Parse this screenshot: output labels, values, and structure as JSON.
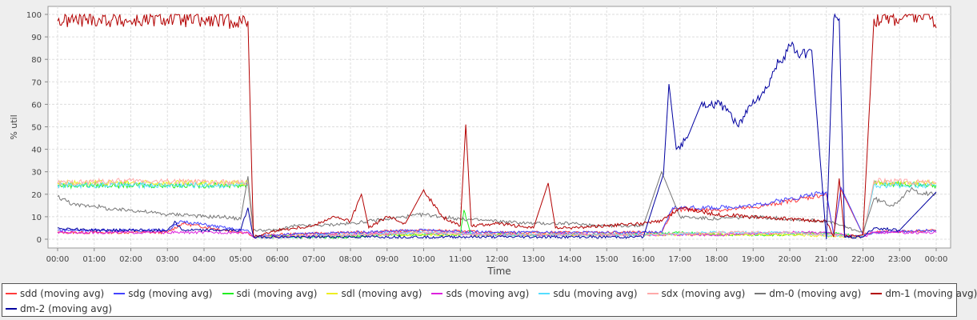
{
  "chart_data": {
    "type": "line",
    "title": "",
    "xlabel": "Time",
    "ylabel": "% util",
    "ylim": [
      0,
      100
    ],
    "yticks": [
      0,
      10,
      20,
      30,
      40,
      50,
      60,
      70,
      80,
      90,
      100
    ],
    "xlim": [
      0,
      24
    ],
    "xticks": [
      "00:00",
      "01:00",
      "02:00",
      "03:00",
      "04:00",
      "05:00",
      "06:00",
      "07:00",
      "08:00",
      "09:00",
      "10:00",
      "11:00",
      "12:00",
      "13:00",
      "14:00",
      "15:00",
      "16:00",
      "17:00",
      "18:00",
      "19:00",
      "20:00",
      "21:00",
      "22:00",
      "23:00",
      "00:00"
    ],
    "grid": true,
    "legend_position": "bottom",
    "series": [
      {
        "name": "sdd (moving avg)",
        "color": "#ff3b3b",
        "x": [
          0,
          2,
          3,
          3.4,
          5,
          5.2,
          5.35,
          6,
          8,
          10,
          12,
          14,
          16.5,
          16.8,
          18,
          19,
          20,
          21,
          21.2,
          21.4,
          22,
          22.3,
          24
        ],
        "y": [
          3,
          3,
          3,
          7,
          3,
          3,
          1,
          2,
          3,
          4,
          3,
          3,
          3,
          13,
          13,
          14,
          17,
          20,
          2,
          22,
          2,
          3,
          4
        ]
      },
      {
        "name": "sdg (moving avg)",
        "color": "#4444ff",
        "x": [
          0,
          2,
          3,
          3.4,
          5,
          5.2,
          5.35,
          6,
          8,
          10,
          12,
          14,
          16.5,
          16.8,
          18,
          19,
          20,
          21,
          21.2,
          21.4,
          22,
          22.3,
          24
        ],
        "y": [
          4,
          4,
          4,
          8,
          4,
          4,
          1,
          2,
          3,
          4,
          3,
          3,
          3,
          14,
          14,
          15,
          18,
          21,
          2,
          23,
          2,
          3,
          4
        ]
      },
      {
        "name": "sdi (moving avg)",
        "color": "#22ee22",
        "x": [
          0,
          2,
          5.2,
          5.35,
          6,
          8,
          9,
          10,
          11,
          11.1,
          11.3,
          12,
          14,
          16,
          17,
          18,
          19,
          20,
          21,
          22,
          22.3,
          24
        ],
        "y": [
          24,
          24,
          24,
          1,
          1,
          1,
          2,
          2,
          2,
          13,
          2,
          2,
          2,
          2,
          3,
          2,
          2,
          2,
          3,
          1,
          25,
          24
        ]
      },
      {
        "name": "sdl (moving avg)",
        "color": "#eeee22",
        "x": [
          0,
          2,
          5.2,
          5.35,
          6,
          8,
          10,
          12,
          14,
          16,
          18,
          20,
          22,
          22.3,
          24
        ],
        "y": [
          25,
          25,
          25,
          1,
          1,
          2,
          2,
          2,
          2,
          2,
          2,
          2,
          1,
          25,
          25
        ]
      },
      {
        "name": "sds (moving avg)",
        "color": "#dd22dd",
        "x": [
          0,
          2,
          5.2,
          5.35,
          6,
          8,
          10,
          12,
          14,
          16,
          18,
          20,
          21,
          22,
          22.3,
          24
        ],
        "y": [
          3,
          3,
          3,
          1,
          1,
          2,
          3,
          2,
          2,
          2,
          2,
          3,
          3,
          1,
          3,
          3
        ]
      },
      {
        "name": "sdu (moving avg)",
        "color": "#55ddff",
        "x": [
          0,
          2,
          5.2,
          5.35,
          6,
          8,
          10,
          12,
          14,
          16,
          18,
          20,
          22,
          22.3,
          24
        ],
        "y": [
          24,
          24,
          24,
          1,
          1,
          2,
          3,
          2,
          2,
          2,
          3,
          3,
          1,
          24,
          24
        ]
      },
      {
        "name": "sdx (moving avg)",
        "color": "#ffaaaa",
        "x": [
          0,
          2,
          5.2,
          5.35,
          6,
          8,
          10,
          12,
          14,
          16,
          18,
          20,
          22,
          22.3,
          24
        ],
        "y": [
          25,
          26,
          25,
          1,
          1,
          2,
          3,
          2,
          2,
          2,
          3,
          3,
          1,
          26,
          25
        ]
      },
      {
        "name": "dm-0 (moving avg)",
        "color": "#777777",
        "x": [
          0,
          0.5,
          1,
          1.5,
          2,
          2.5,
          3,
          3.5,
          4,
          4.5,
          5,
          5.2,
          5.35,
          6,
          6.5,
          7,
          8,
          9,
          10,
          10.5,
          11,
          12,
          13,
          14,
          15,
          16,
          16.5,
          17,
          18,
          19,
          20,
          21,
          22,
          22.3,
          22.8,
          23.3,
          23.8,
          24
        ],
        "y": [
          19,
          15,
          15,
          13,
          13,
          12,
          11,
          11,
          10,
          10,
          9,
          28,
          4,
          4,
          6,
          6,
          7,
          9,
          11,
          10,
          9,
          8,
          7,
          7,
          6,
          6,
          30,
          10,
          9,
          10,
          9,
          8,
          3,
          18,
          15,
          22,
          20,
          20
        ]
      },
      {
        "name": "dm-1 (moving avg)",
        "color": "#b30000",
        "x": [
          0,
          1,
          2,
          3,
          4,
          5,
          5.2,
          5.35,
          6,
          7,
          7.5,
          8,
          8.3,
          8.5,
          9,
          9.5,
          10,
          10.5,
          11,
          11.15,
          11.3,
          12,
          13,
          13.4,
          13.6,
          14,
          15,
          16,
          16.5,
          17,
          18,
          19,
          20,
          21,
          21.2,
          21.35,
          21.5,
          22,
          22.3,
          23,
          23.5,
          23.9,
          24
        ],
        "y": [
          97,
          98,
          97,
          98,
          97,
          97,
          97,
          1,
          4,
          6,
          10,
          8,
          20,
          5,
          10,
          7,
          22,
          10,
          6,
          51,
          6,
          7,
          5,
          25,
          5,
          5,
          6,
          7,
          8,
          14,
          11,
          10,
          9,
          8,
          1,
          27,
          1,
          2,
          98,
          98,
          99,
          99,
          94
        ]
      },
      {
        "name": "dm-2 (moving avg)",
        "color": "#0000a0",
        "x": [
          0,
          1,
          2,
          3,
          3.2,
          3.4,
          4,
          5,
          5.2,
          5.35,
          6,
          8,
          10,
          12,
          14,
          16,
          16.55,
          16.7,
          16.9,
          17.2,
          17.6,
          18,
          18.3,
          18.6,
          19,
          19.3,
          19.6,
          20,
          20.3,
          20.6,
          21,
          21.2,
          21.35,
          21.5,
          22,
          22.3,
          23,
          24
        ],
        "y": [
          5,
          4,
          4,
          4,
          8,
          4,
          4,
          4,
          14,
          1,
          1,
          1,
          1,
          1,
          1,
          1,
          29,
          69,
          40,
          45,
          61,
          60,
          58,
          50,
          62,
          65,
          76,
          86,
          82,
          84,
          0,
          98,
          98,
          1,
          1,
          5,
          4,
          21
        ]
      }
    ]
  },
  "legend": [
    [
      "sdd (moving avg)",
      "sdg (moving avg)",
      "sdi (moving avg)",
      "sdl (moving avg)",
      "sds (moving avg)",
      "sdu (moving avg)",
      "sdx (moving avg)",
      "dm-0 (moving avg)",
      "dm-1 (moving avg)"
    ],
    [
      "dm-2 (moving avg)"
    ]
  ]
}
